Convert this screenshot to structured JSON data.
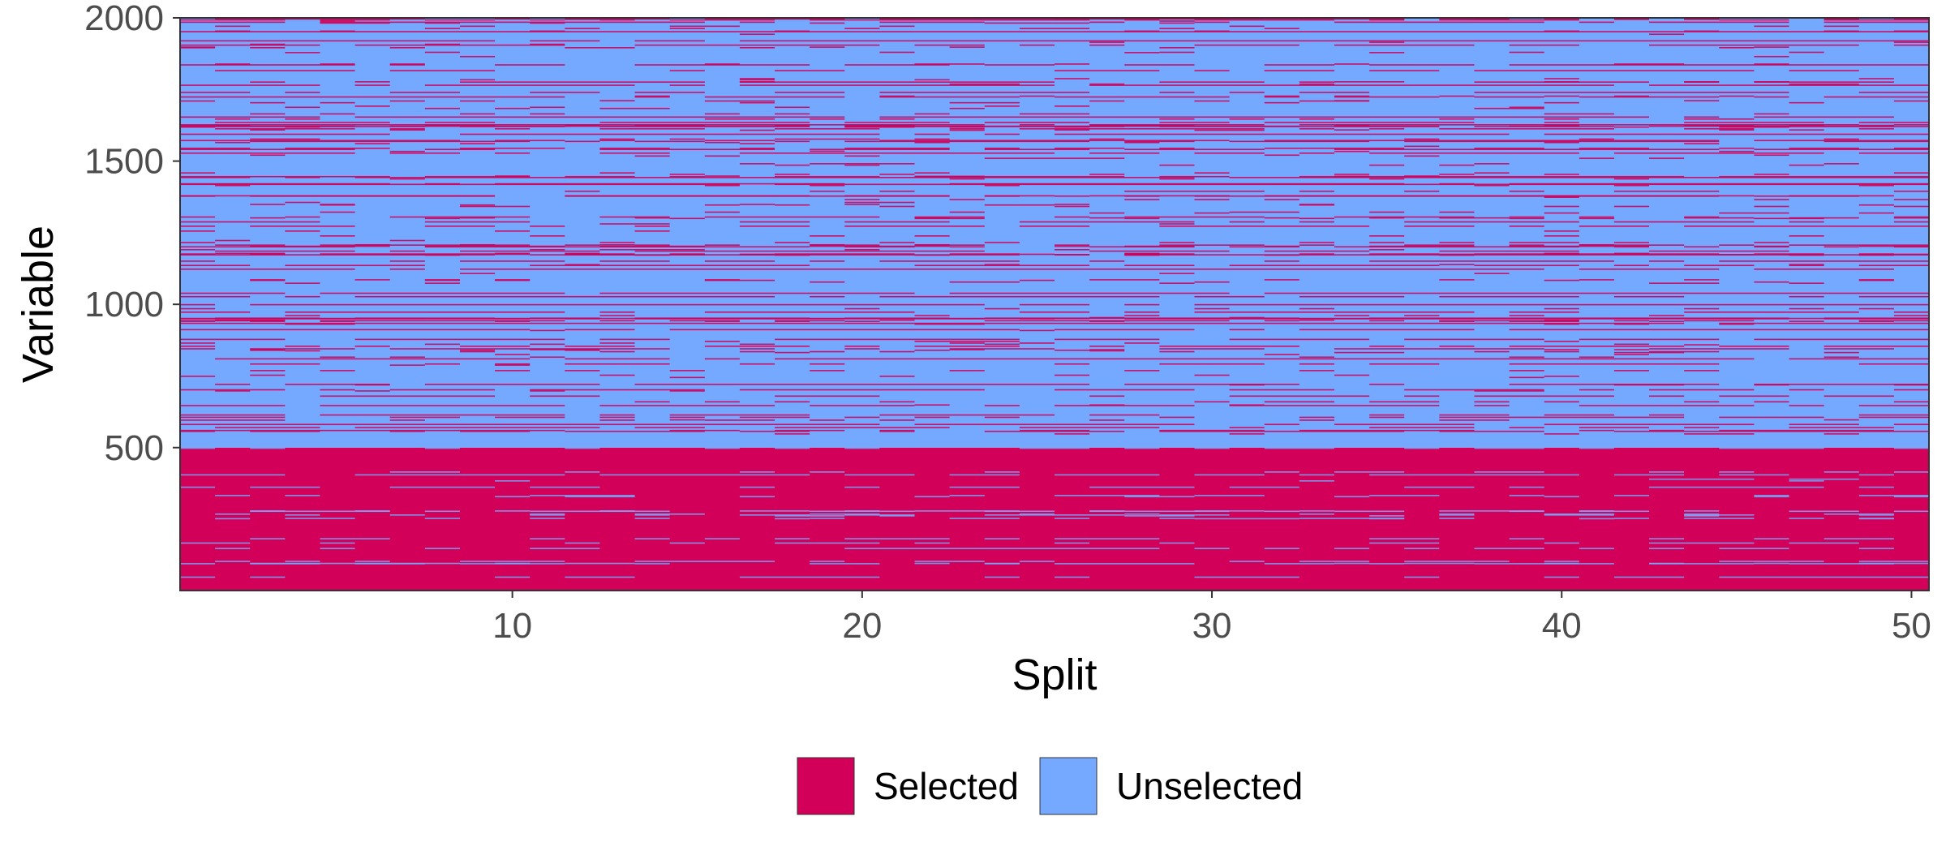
{
  "chart_data": {
    "type": "heatmap",
    "title": "",
    "xlabel": "Split",
    "ylabel": "Variable",
    "xlim": [
      0.5,
      50.5
    ],
    "ylim": [
      1,
      2000
    ],
    "x_ticks": [
      10,
      20,
      30,
      40,
      50
    ],
    "y_ticks": [
      500,
      1000,
      1500,
      2000
    ],
    "n_splits": 50,
    "n_variables": 2000,
    "grid": false,
    "legend": {
      "position": "bottom",
      "entries": [
        {
          "label": "Selected",
          "color": "#d20058"
        },
        {
          "label": "Unselected",
          "color": "#74a9ff"
        }
      ]
    },
    "series": [
      {
        "name": "Selected",
        "description_variables": "Variables 1–500 selected in nearly every split; variables 501–2000 mostly unselected with sparse selections",
        "variable_range": [
          1,
          500
        ],
        "selection_rate": 0.95
      },
      {
        "name": "Unselected",
        "variable_range": [
          501,
          2000
        ],
        "selection_rate": 0.04
      }
    ]
  }
}
